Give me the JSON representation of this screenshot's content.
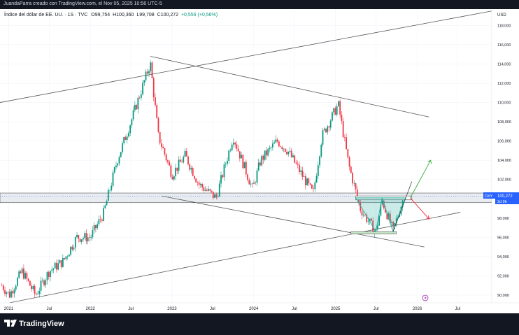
{
  "header": {
    "attribution": "JuandaParra creado con TradingView.com, el Nov 05, 2025 10:56 UTC-5"
  },
  "legend": {
    "symbol": "Índice del dólar de EE. UU. · 1S · TVC",
    "open": "O99,754",
    "high": "H100,360",
    "low": "L99,708",
    "close": "C100,272",
    "change": "+0,556 (+0,56%)",
    "change_color": "#089981"
  },
  "price_axis": {
    "currency": "USD",
    "ticks": [
      "118,000",
      "116,000",
      "114,000",
      "112,000",
      "110,000",
      "108,000",
      "106,000",
      "104,000",
      "102,000",
      "98,000",
      "96,000",
      "94,000",
      "92,000",
      "90,000"
    ]
  },
  "time_axis": {
    "ticks": [
      "2021",
      "Jul",
      "2022",
      "Jul",
      "2023",
      "Jul",
      "2024",
      "Jul",
      "2025",
      "Jul",
      "2026",
      "Jul"
    ]
  },
  "price_badge": {
    "symbol": "DXY",
    "price": "100,272",
    "countdown": "2d 9h",
    "color": "#2962ff"
  },
  "footer": {
    "brand": "TradingView"
  },
  "colors": {
    "up": "#089981",
    "down": "#f23645",
    "lines": "#555555",
    "zone": "#e6eaee",
    "pattern": "#2ab0a0",
    "arrow_up": "#4caf50",
    "arrow_down": "#f23645"
  },
  "chart_data": {
    "type": "candlestick",
    "title": "",
    "ylim": [
      89.2,
      119.7
    ],
    "x_range": [
      "2020-11-23",
      "2026-11-30"
    ],
    "ohlc_anchor_closes": [
      {
        "date": "2020-12-01",
        "close": 91.0
      },
      {
        "date": "2021-01-04",
        "close": 90.0
      },
      {
        "date": "2021-03-01",
        "close": 92.5
      },
      {
        "date": "2021-05-01",
        "close": 90.0
      },
      {
        "date": "2021-07-01",
        "close": 92.5
      },
      {
        "date": "2021-09-01",
        "close": 93.5
      },
      {
        "date": "2021-11-01",
        "close": 96.0
      },
      {
        "date": "2022-01-01",
        "close": 96.0
      },
      {
        "date": "2022-03-01",
        "close": 98.5
      },
      {
        "date": "2022-05-01",
        "close": 104.0
      },
      {
        "date": "2022-07-01",
        "close": 108.0
      },
      {
        "date": "2022-09-26",
        "close": 114.1
      },
      {
        "date": "2022-11-01",
        "close": 106.5
      },
      {
        "date": "2023-01-01",
        "close": 102.5
      },
      {
        "date": "2023-03-01",
        "close": 104.5
      },
      {
        "date": "2023-05-01",
        "close": 101.5
      },
      {
        "date": "2023-07-17",
        "close": 100.1
      },
      {
        "date": "2023-10-01",
        "close": 106.5
      },
      {
        "date": "2023-12-27",
        "close": 101.0
      },
      {
        "date": "2024-02-01",
        "close": 104.0
      },
      {
        "date": "2024-04-15",
        "close": 106.0
      },
      {
        "date": "2024-06-01",
        "close": 105.0
      },
      {
        "date": "2024-09-23",
        "close": 100.5
      },
      {
        "date": "2024-11-01",
        "close": 106.5
      },
      {
        "date": "2025-01-13",
        "close": 109.8
      },
      {
        "date": "2025-03-01",
        "close": 103.5
      },
      {
        "date": "2025-04-21",
        "close": 99.0
      },
      {
        "date": "2025-06-30",
        "close": 96.5
      },
      {
        "date": "2025-07-28",
        "close": 99.8
      },
      {
        "date": "2025-09-15",
        "close": 96.7
      },
      {
        "date": "2025-11-03",
        "close": 100.272
      }
    ],
    "trendlines": [
      {
        "from": {
          "date": "2020-11-23",
          "price": 110.0
        },
        "to": {
          "date": "2026-11-30",
          "price": 119.5
        }
      },
      {
        "from": {
          "date": "2022-09-26",
          "price": 114.8
        },
        "to": {
          "date": "2026-02-23",
          "price": 108.5
        }
      },
      {
        "from": {
          "date": "2022-11-14",
          "price": 100.3
        },
        "to": {
          "date": "2026-02-02",
          "price": 95.0
        }
      },
      {
        "from": {
          "date": "2021-01-04",
          "price": 89.2
        },
        "to": {
          "date": "2026-07-13",
          "price": 98.6
        }
      }
    ],
    "support_zone": {
      "from": "2020-11-23",
      "to": "2026-11-30",
      "low": 99.6,
      "high": 100.6
    },
    "pattern_zone": {
      "from": "2025-04-01",
      "to": "2025-12-08",
      "low": 99.9,
      "high": 100.3
    },
    "base_zone": {
      "from": "2025-03-10",
      "to": "2025-09-29",
      "low": 96.35,
      "high": 96.6
    },
    "projection": {
      "bull_target": {
        "date": "2026-03-02",
        "price": 104.0
      },
      "bear_target": {
        "date": "2026-02-23",
        "price": 97.9
      }
    },
    "last_price": 100.272
  }
}
